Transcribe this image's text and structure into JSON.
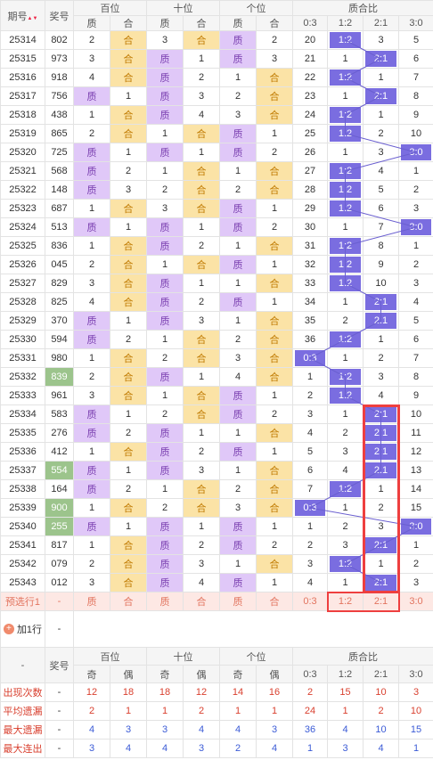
{
  "header": {
    "issue_label": "期号",
    "prize_label": "奖号",
    "groups": [
      "百位",
      "十位",
      "个位",
      "质合比"
    ],
    "sub": [
      "质",
      "合",
      "质",
      "合",
      "质",
      "合",
      "0:3",
      "1:2",
      "2:1",
      "3:0"
    ]
  },
  "rows": [
    {
      "issue": "25314",
      "num": "802",
      "b": [
        "2",
        "合"
      ],
      "s": [
        "3",
        "合"
      ],
      "g": [
        "质",
        "2"
      ],
      "r": [
        "20",
        "1:2",
        "3",
        "5"
      ],
      "bh": 1,
      "sh": 1,
      "gh": 0,
      "rh": 1
    },
    {
      "issue": "25315",
      "num": "973",
      "b": [
        "3",
        "合"
      ],
      "s": [
        "质",
        "1"
      ],
      "g": [
        "质",
        "3"
      ],
      "r": [
        "21",
        "1",
        "2:1",
        "6"
      ],
      "bh": 1,
      "sh": 0,
      "gh": 0,
      "rh": 2
    },
    {
      "issue": "25316",
      "num": "918",
      "b": [
        "4",
        "合"
      ],
      "s": [
        "质",
        "2"
      ],
      "g": [
        "1",
        "合"
      ],
      "r": [
        "22",
        "1:2",
        "1",
        "7"
      ],
      "bh": 1,
      "sh": 0,
      "gh": 1,
      "rh": 1
    },
    {
      "issue": "25317",
      "num": "756",
      "b": [
        "质",
        "1"
      ],
      "s": [
        "质",
        "3"
      ],
      "g": [
        "2",
        "合"
      ],
      "r": [
        "23",
        "1",
        "2:1",
        "8"
      ],
      "bh": 0,
      "sh": 0,
      "gh": 1,
      "rh": 2
    },
    {
      "issue": "25318",
      "num": "438",
      "b": [
        "1",
        "合"
      ],
      "s": [
        "质",
        "4"
      ],
      "g": [
        "3",
        "合"
      ],
      "r": [
        "24",
        "1:2",
        "1",
        "9"
      ],
      "bh": 1,
      "sh": 0,
      "gh": 1,
      "rh": 1
    },
    {
      "issue": "25319",
      "num": "865",
      "b": [
        "2",
        "合"
      ],
      "s": [
        "1",
        "合"
      ],
      "g": [
        "质",
        "1"
      ],
      "r": [
        "25",
        "1:2",
        "2",
        "10"
      ],
      "bh": 1,
      "sh": 1,
      "gh": 0,
      "rh": 1
    },
    {
      "issue": "25320",
      "num": "725",
      "b": [
        "质",
        "1"
      ],
      "s": [
        "质",
        "1"
      ],
      "g": [
        "质",
        "2"
      ],
      "r": [
        "26",
        "1",
        "3",
        "3:0"
      ],
      "bh": 0,
      "sh": 0,
      "gh": 0,
      "rh": 3
    },
    {
      "issue": "25321",
      "num": "568",
      "b": [
        "质",
        "2"
      ],
      "s": [
        "1",
        "合"
      ],
      "g": [
        "1",
        "合"
      ],
      "r": [
        "27",
        "1:2",
        "4",
        "1"
      ],
      "bh": 0,
      "sh": 1,
      "gh": 1,
      "rh": 1
    },
    {
      "issue": "25322",
      "num": "148",
      "b": [
        "质",
        "3"
      ],
      "s": [
        "2",
        "合"
      ],
      "g": [
        "2",
        "合"
      ],
      "r": [
        "28",
        "1:2",
        "5",
        "2"
      ],
      "bh": 0,
      "sh": 1,
      "gh": 1,
      "rh": 1
    },
    {
      "issue": "25323",
      "num": "687",
      "b": [
        "1",
        "合"
      ],
      "s": [
        "3",
        "合"
      ],
      "g": [
        "质",
        "1"
      ],
      "r": [
        "29",
        "1:2",
        "6",
        "3"
      ],
      "bh": 1,
      "sh": 1,
      "gh": 0,
      "rh": 1
    },
    {
      "issue": "25324",
      "num": "513",
      "b": [
        "质",
        "1"
      ],
      "s": [
        "质",
        "1"
      ],
      "g": [
        "质",
        "2"
      ],
      "r": [
        "30",
        "1",
        "7",
        "3:0"
      ],
      "bh": 0,
      "sh": 0,
      "gh": 0,
      "rh": 3
    },
    {
      "issue": "25325",
      "num": "836",
      "b": [
        "1",
        "合"
      ],
      "s": [
        "质",
        "2"
      ],
      "g": [
        "1",
        "合"
      ],
      "r": [
        "31",
        "1:2",
        "8",
        "1"
      ],
      "bh": 1,
      "sh": 0,
      "gh": 1,
      "rh": 1
    },
    {
      "issue": "25326",
      "num": "045",
      "b": [
        "2",
        "合"
      ],
      "s": [
        "1",
        "合"
      ],
      "g": [
        "质",
        "1"
      ],
      "r": [
        "32",
        "1:2",
        "9",
        "2"
      ],
      "bh": 1,
      "sh": 1,
      "gh": 0,
      "rh": 1
    },
    {
      "issue": "25327",
      "num": "829",
      "b": [
        "3",
        "合"
      ],
      "s": [
        "质",
        "1"
      ],
      "g": [
        "1",
        "合"
      ],
      "r": [
        "33",
        "1:2",
        "10",
        "3"
      ],
      "bh": 1,
      "sh": 0,
      "gh": 1,
      "rh": 1
    },
    {
      "issue": "25328",
      "num": "825",
      "b": [
        "4",
        "合"
      ],
      "s": [
        "质",
        "2"
      ],
      "g": [
        "质",
        "1"
      ],
      "r": [
        "34",
        "1",
        "2:1",
        "4"
      ],
      "bh": 1,
      "sh": 0,
      "gh": 0,
      "rh": 2
    },
    {
      "issue": "25329",
      "num": "370",
      "b": [
        "质",
        "1"
      ],
      "s": [
        "质",
        "3"
      ],
      "g": [
        "1",
        "合"
      ],
      "r": [
        "35",
        "2",
        "2:1",
        "5"
      ],
      "bh": 0,
      "sh": 0,
      "gh": 1,
      "rh": 2
    },
    {
      "issue": "25330",
      "num": "594",
      "b": [
        "质",
        "2"
      ],
      "s": [
        "1",
        "合"
      ],
      "g": [
        "2",
        "合"
      ],
      "r": [
        "36",
        "1:2",
        "1",
        "6"
      ],
      "bh": 0,
      "sh": 1,
      "gh": 1,
      "rh": 1
    },
    {
      "issue": "25331",
      "num": "980",
      "b": [
        "1",
        "合"
      ],
      "s": [
        "2",
        "合"
      ],
      "g": [
        "3",
        "合"
      ],
      "r": [
        "0:3",
        "1",
        "2",
        "7"
      ],
      "bh": 1,
      "sh": 1,
      "gh": 1,
      "rh": 0
    },
    {
      "issue": "25332",
      "num": "839",
      "b": [
        "2",
        "合"
      ],
      "s": [
        "质",
        "1"
      ],
      "g": [
        "4",
        "合"
      ],
      "r": [
        "1",
        "1:2",
        "3",
        "8"
      ],
      "bh": 1,
      "sh": 0,
      "gh": 1,
      "rh": 1,
      "green": 1
    },
    {
      "issue": "25333",
      "num": "961",
      "b": [
        "3",
        "合"
      ],
      "s": [
        "1",
        "合"
      ],
      "g": [
        "质",
        "1"
      ],
      "r": [
        "2",
        "1:2",
        "4",
        "9"
      ],
      "bh": 1,
      "sh": 1,
      "gh": 0,
      "rh": 1
    },
    {
      "issue": "25334",
      "num": "583",
      "b": [
        "质",
        "1"
      ],
      "s": [
        "2",
        "合"
      ],
      "g": [
        "质",
        "2"
      ],
      "r": [
        "3",
        "1",
        "2:1",
        "10"
      ],
      "bh": 0,
      "sh": 1,
      "gh": 0,
      "rh": 2
    },
    {
      "issue": "25335",
      "num": "276",
      "b": [
        "质",
        "2"
      ],
      "s": [
        "质",
        "1"
      ],
      "g": [
        "1",
        "合"
      ],
      "r": [
        "4",
        "2",
        "2:1",
        "11"
      ],
      "bh": 0,
      "sh": 0,
      "gh": 1,
      "rh": 2
    },
    {
      "issue": "25336",
      "num": "412",
      "b": [
        "1",
        "合"
      ],
      "s": [
        "质",
        "2"
      ],
      "g": [
        "质",
        "1"
      ],
      "r": [
        "5",
        "3",
        "2:1",
        "12"
      ],
      "bh": 1,
      "sh": 0,
      "gh": 0,
      "rh": 2
    },
    {
      "issue": "25337",
      "num": "554",
      "b": [
        "质",
        "1"
      ],
      "s": [
        "质",
        "3"
      ],
      "g": [
        "1",
        "合"
      ],
      "r": [
        "6",
        "4",
        "2:1",
        "13"
      ],
      "bh": 0,
      "sh": 0,
      "gh": 1,
      "rh": 2,
      "green": 1
    },
    {
      "issue": "25338",
      "num": "164",
      "b": [
        "质",
        "2"
      ],
      "s": [
        "1",
        "合"
      ],
      "g": [
        "2",
        "合"
      ],
      "r": [
        "7",
        "1:2",
        "1",
        "14"
      ],
      "bh": 0,
      "sh": 1,
      "gh": 1,
      "rh": 1
    },
    {
      "issue": "25339",
      "num": "900",
      "b": [
        "1",
        "合"
      ],
      "s": [
        "2",
        "合"
      ],
      "g": [
        "3",
        "合"
      ],
      "r": [
        "0:3",
        "1",
        "2",
        "15"
      ],
      "bh": 1,
      "sh": 1,
      "gh": 1,
      "rh": 0,
      "green": 1
    },
    {
      "issue": "25340",
      "num": "255",
      "b": [
        "质",
        "1"
      ],
      "s": [
        "质",
        "1"
      ],
      "g": [
        "质",
        "1"
      ],
      "r": [
        "1",
        "2",
        "3",
        "3:0"
      ],
      "bh": 0,
      "sh": 0,
      "gh": 0,
      "rh": 3,
      "green": 1
    },
    {
      "issue": "25341",
      "num": "817",
      "b": [
        "1",
        "合"
      ],
      "s": [
        "质",
        "2"
      ],
      "g": [
        "质",
        "2"
      ],
      "r": [
        "2",
        "3",
        "2:1",
        "1"
      ],
      "bh": 1,
      "sh": 0,
      "gh": 0,
      "rh": 2
    },
    {
      "issue": "25342",
      "num": "079",
      "b": [
        "2",
        "合"
      ],
      "s": [
        "质",
        "3"
      ],
      "g": [
        "1",
        "合"
      ],
      "r": [
        "3",
        "1:2",
        "1",
        "2"
      ],
      "bh": 1,
      "sh": 0,
      "gh": 1,
      "rh": 1
    },
    {
      "issue": "25343",
      "num": "012",
      "b": [
        "3",
        "合"
      ],
      "s": [
        "质",
        "4"
      ],
      "g": [
        "质",
        "1"
      ],
      "r": [
        "4",
        "1",
        "2:1",
        "3"
      ],
      "bh": 1,
      "sh": 0,
      "gh": 0,
      "rh": 2
    }
  ],
  "predict": {
    "label": "预选行1",
    "num": "-",
    "cells": [
      "质",
      "合",
      "质",
      "合",
      "质",
      "合",
      "0:3",
      "1:2",
      "2:1",
      "3:0"
    ]
  },
  "add_row": {
    "label": "加1行",
    "dash": "-"
  },
  "stats_header": {
    "dash": "-",
    "prize": "奖号",
    "groups": [
      "百位",
      "十位",
      "个位",
      "质合比"
    ],
    "sub": [
      "奇",
      "偶",
      "奇",
      "偶",
      "奇",
      "偶",
      "0:3",
      "1:2",
      "2:1",
      "3:0"
    ]
  },
  "stats": [
    {
      "label": "出现次数",
      "num": "-",
      "vals": [
        "12",
        "18",
        "18",
        "12",
        "14",
        "16",
        "2",
        "15",
        "10",
        "3"
      ],
      "cls": "s1"
    },
    {
      "label": "平均遗漏",
      "num": "-",
      "vals": [
        "2",
        "1",
        "1",
        "2",
        "1",
        "1",
        "24",
        "1",
        "2",
        "10"
      ],
      "cls": "s2"
    },
    {
      "label": "最大遗漏",
      "num": "-",
      "vals": [
        "4",
        "3",
        "3",
        "4",
        "4",
        "3",
        "36",
        "4",
        "10",
        "15"
      ],
      "cls": "s3"
    },
    {
      "label": "最大连出",
      "num": "-",
      "vals": [
        "3",
        "4",
        "4",
        "3",
        "2",
        "4",
        "1",
        "3",
        "4",
        "1"
      ],
      "cls": "s4"
    }
  ],
  "colors": {
    "zhi": "#e0c8f8",
    "he": "#fbe3a6",
    "hit": "#7a6de0",
    "highlight": "#ee3f3f"
  }
}
